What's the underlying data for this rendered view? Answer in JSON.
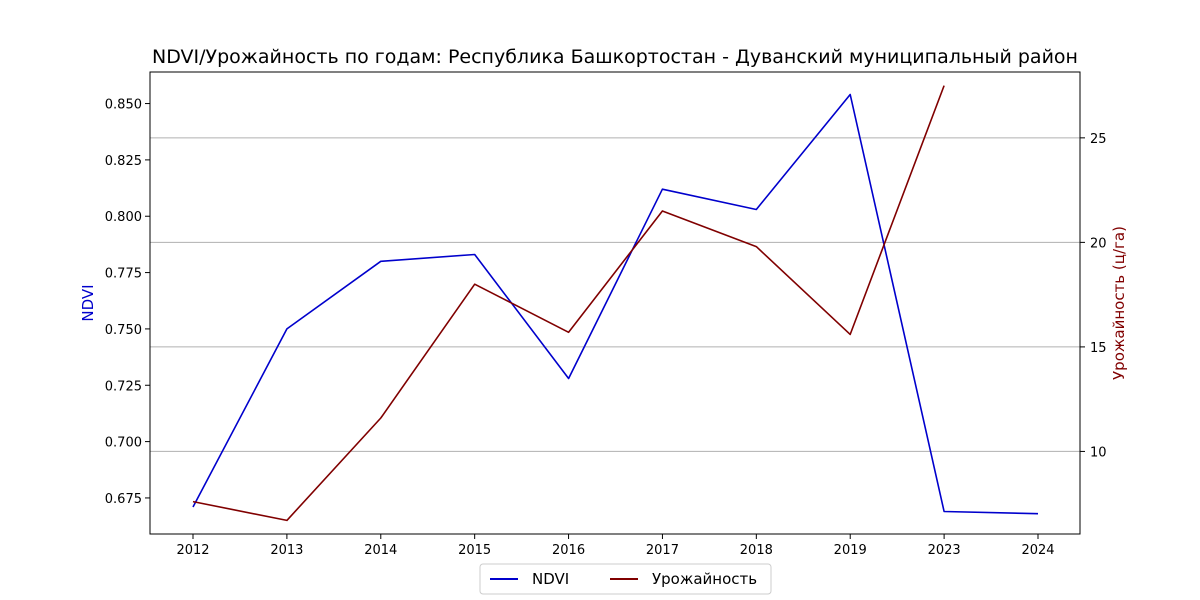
{
  "chart_data": {
    "type": "line",
    "title": "NDVI/Урожайность по годам: Республика Башкортостан - Дуванский муниципальный район",
    "categories": [
      "2012",
      "2013",
      "2014",
      "2015",
      "2016",
      "2017",
      "2018",
      "2019",
      "2023",
      "2024"
    ],
    "series": [
      {
        "name": "NDVI",
        "axis": "left",
        "color": "#0000cc",
        "values": [
          0.671,
          0.75,
          0.78,
          0.783,
          0.728,
          0.812,
          0.803,
          0.854,
          0.669,
          0.668
        ]
      },
      {
        "name": "Урожайность",
        "axis": "right",
        "color": "#800000",
        "values": [
          7.6,
          6.7,
          11.6,
          18.0,
          15.7,
          21.5,
          19.8,
          15.6,
          27.5,
          null
        ]
      }
    ],
    "y_left": {
      "label": "NDVI",
      "color": "#0000cc",
      "lim": [
        0.659,
        0.864
      ],
      "ticks": [
        "0.675",
        "0.700",
        "0.725",
        "0.750",
        "0.775",
        "0.800",
        "0.825",
        "0.850"
      ]
    },
    "y_right": {
      "label": "Урожайность (ц/га)",
      "color": "#800000",
      "lim": [
        6.05,
        28.15
      ],
      "ticks": [
        "10",
        "15",
        "20",
        "25"
      ]
    },
    "grid": "horizontal-right-axis",
    "legend": {
      "placement": "bottom-center",
      "entries": [
        {
          "label": "NDVI",
          "color": "#0000cc"
        },
        {
          "label": "Урожайность",
          "color": "#800000"
        }
      ]
    }
  }
}
